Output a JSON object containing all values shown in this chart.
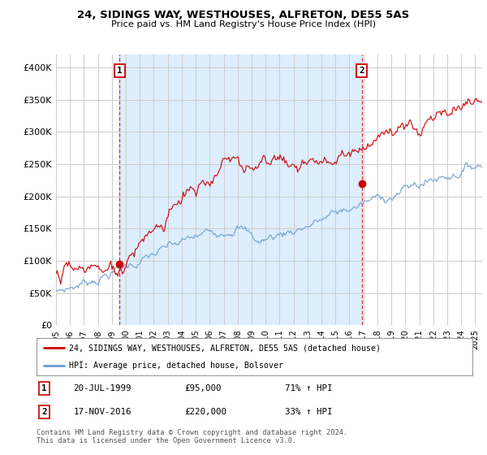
{
  "title": "24, SIDINGS WAY, WESTHOUSES, ALFRETON, DE55 5AS",
  "subtitle": "Price paid vs. HM Land Registry's House Price Index (HPI)",
  "ylim": [
    0,
    420000
  ],
  "yticks": [
    0,
    50000,
    100000,
    150000,
    200000,
    250000,
    300000,
    350000,
    400000
  ],
  "ytick_labels": [
    "£0",
    "£50K",
    "£100K",
    "£150K",
    "£200K",
    "£250K",
    "£300K",
    "£350K",
    "£400K"
  ],
  "legend_entries": [
    "24, SIDINGS WAY, WESTHOUSES, ALFRETON, DE55 5AS (detached house)",
    "HPI: Average price, detached house, Bolsover"
  ],
  "marker1_x": 1999.55,
  "marker1_y": 95000,
  "marker2_x": 2016.88,
  "marker2_y": 220000,
  "marker1_date": "20-JUL-1999",
  "marker1_price": "£95,000",
  "marker1_hpi": "71% ↑ HPI",
  "marker2_date": "17-NOV-2016",
  "marker2_price": "£220,000",
  "marker2_hpi": "33% ↑ HPI",
  "footer": "Contains HM Land Registry data © Crown copyright and database right 2024.\nThis data is licensed under the Open Government Licence v3.0.",
  "red_color": "#cc0000",
  "blue_color": "#6699cc",
  "shade_color": "#ddeeff",
  "grid_color": "#cccccc",
  "background_color": "#ffffff",
  "xlim_left": 1995.0,
  "xlim_right": 2025.5
}
